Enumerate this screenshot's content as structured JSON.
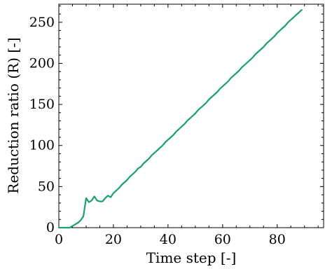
{
  "chart_data": {
    "type": "line",
    "title": "",
    "xlabel": "Time step [-]",
    "ylabel": "Reduction ratio (R) [-]",
    "xlim": [
      0,
      97
    ],
    "ylim": [
      0,
      272
    ],
    "xticks": [
      0,
      20,
      40,
      60,
      80
    ],
    "yticks": [
      0,
      50,
      100,
      150,
      200,
      250
    ],
    "grid": false,
    "legend": "none",
    "series": [
      {
        "color": "#1b9e77",
        "x": [
          0,
          1,
          2,
          3,
          4,
          5,
          6,
          7,
          8,
          9,
          10,
          11,
          12,
          13,
          14,
          15,
          16,
          17,
          18,
          19,
          20,
          21,
          22,
          23,
          24,
          25,
          26,
          27,
          28,
          29,
          30,
          31,
          32,
          33,
          34,
          35,
          36,
          37,
          38,
          39,
          40,
          41,
          42,
          43,
          44,
          45,
          46,
          47,
          48,
          49,
          50,
          51,
          52,
          53,
          54,
          55,
          56,
          57,
          58,
          59,
          60,
          61,
          62,
          63,
          64,
          65,
          66,
          67,
          68,
          69,
          70,
          71,
          72,
          73,
          74,
          75,
          76,
          77,
          78,
          79,
          80,
          81,
          82,
          83,
          84,
          85,
          86,
          87,
          88,
          89
        ],
        "y": [
          0,
          0,
          0,
          0,
          0,
          2,
          4,
          6,
          9,
          14,
          36,
          31,
          33,
          38,
          33,
          32,
          32,
          36,
          39,
          37,
          42,
          45,
          48,
          52,
          55,
          58,
          62,
          65,
          68,
          72,
          74,
          78,
          81,
          84,
          88,
          91,
          94,
          97,
          100,
          104,
          107,
          110,
          113,
          117,
          120,
          123,
          126,
          130,
          133,
          136,
          139,
          143,
          146,
          149,
          152,
          156,
          159,
          162,
          165,
          169,
          172,
          175,
          178,
          182,
          185,
          188,
          191,
          195,
          198,
          201,
          204,
          207,
          211,
          214,
          217,
          220,
          224,
          227,
          230,
          233,
          237,
          240,
          243,
          246,
          250,
          253,
          256,
          259,
          262,
          265
        ]
      }
    ]
  }
}
